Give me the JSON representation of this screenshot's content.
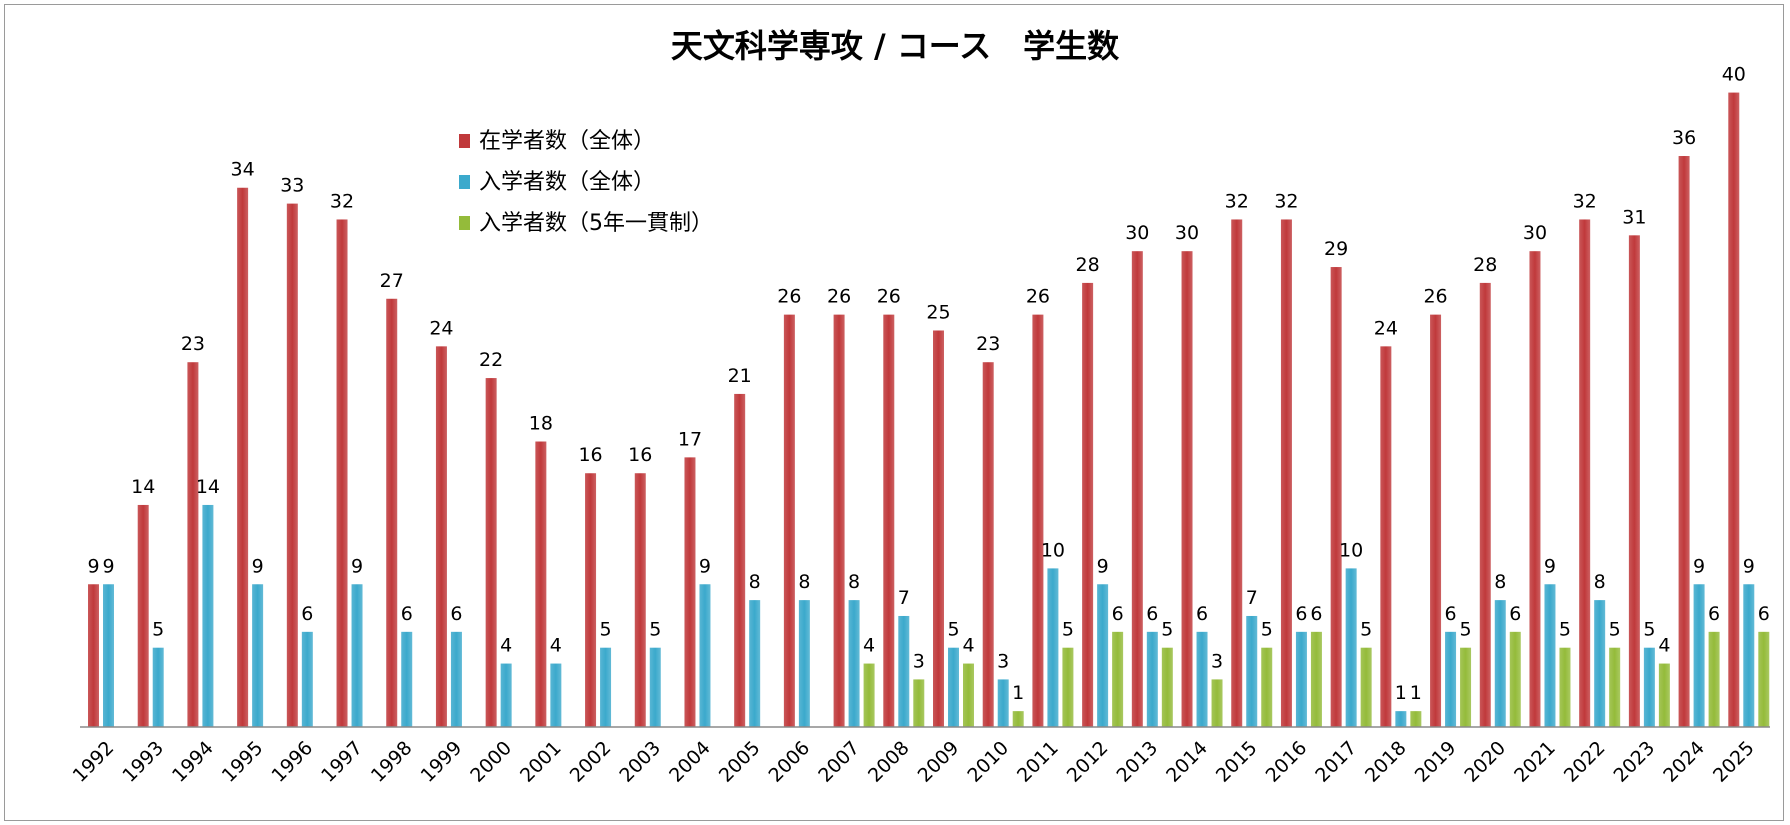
{
  "chart_data": {
    "type": "bar",
    "title": "天文科学専攻 / コース　学生数",
    "xlabel": "",
    "ylabel": "",
    "ylim": [
      0,
      43
    ],
    "grid": false,
    "legend_position": "top-left",
    "categories": [
      "1992",
      "1993",
      "1994",
      "1995",
      "1996",
      "1997",
      "1998",
      "1999",
      "2000",
      "2001",
      "2002",
      "2003",
      "2004",
      "2005",
      "2006",
      "2007",
      "2008",
      "2009",
      "2010",
      "2011",
      "2012",
      "2013",
      "2014",
      "2015",
      "2016",
      "2017",
      "2018",
      "2019",
      "2020",
      "2021",
      "2022",
      "2023",
      "2024",
      "2025"
    ],
    "series": [
      {
        "name": "在学者数（全体）",
        "color": "#c0393b",
        "values": [
          9,
          14,
          23,
          34,
          33,
          32,
          27,
          24,
          22,
          18,
          16,
          16,
          17,
          21,
          26,
          26,
          26,
          25,
          23,
          26,
          28,
          30,
          30,
          32,
          32,
          29,
          24,
          26,
          28,
          30,
          32,
          31,
          36,
          40
        ]
      },
      {
        "name": "入学者数（全体）",
        "color": "#3ba9cc",
        "values": [
          9,
          5,
          14,
          9,
          6,
          9,
          6,
          6,
          4,
          4,
          5,
          5,
          9,
          8,
          8,
          8,
          7,
          5,
          3,
          10,
          9,
          6,
          6,
          7,
          6,
          10,
          1,
          6,
          8,
          9,
          8,
          5,
          9,
          9
        ]
      },
      {
        "name": "入学者数（5年一貫制）",
        "color": "#94bb3a",
        "values": [
          null,
          null,
          null,
          null,
          null,
          null,
          null,
          null,
          null,
          null,
          null,
          null,
          null,
          null,
          null,
          4,
          3,
          4,
          1,
          5,
          6,
          5,
          3,
          5,
          6,
          5,
          1,
          5,
          6,
          5,
          5,
          4,
          6,
          6
        ]
      }
    ]
  }
}
